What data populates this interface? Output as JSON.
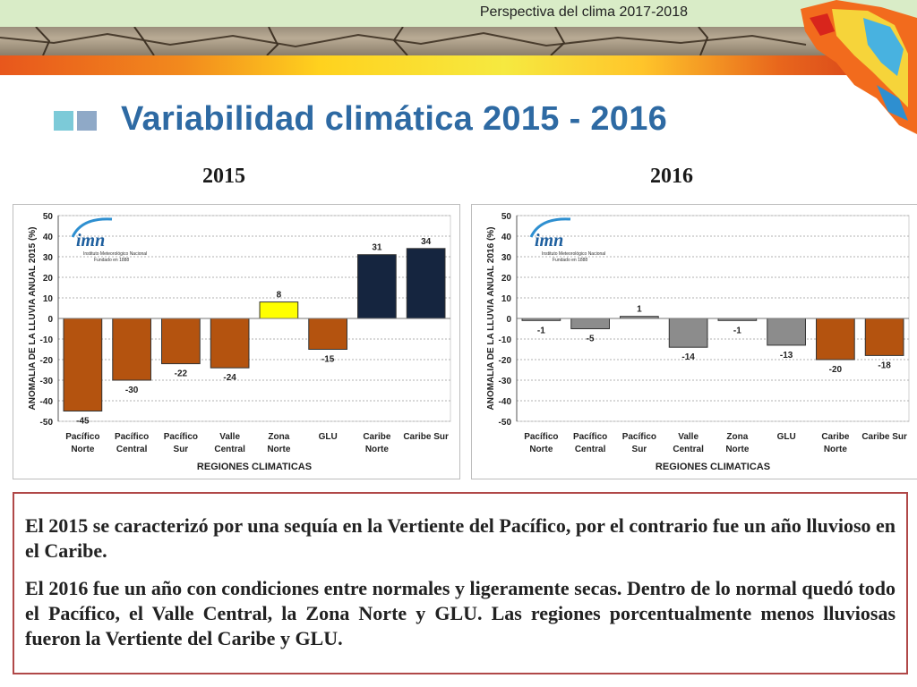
{
  "header": {
    "title": "Perspectiva del clima 2017-2018"
  },
  "slide": {
    "title": "Variabilidad climática 2015 - 2016"
  },
  "logo": {
    "text": "imn",
    "subtitle1": "Instituto Meteorológico Nacional",
    "subtitle2": "Fundado en 1888"
  },
  "colors": {
    "dry": "#b4530f",
    "normal": "#8c8c8c",
    "wet": "#15253f",
    "yellow": "#ffff00",
    "title": "#2e6aa3"
  },
  "chart_data": [
    {
      "type": "bar",
      "title": "2015",
      "xlabel": "REGIONES CLIMATICAS",
      "ylabel": "ANOMALIA DE LA LLUVIA ANUAL 2015 (%)",
      "ylim": [
        -50,
        50
      ],
      "yticks": [
        50,
        40,
        30,
        20,
        10,
        0,
        -10,
        -20,
        -30,
        -40,
        -50
      ],
      "grid": true,
      "categories": [
        [
          "Pacífico",
          "Norte"
        ],
        [
          "Pacífico",
          "Central"
        ],
        [
          "Pacífico",
          "Sur"
        ],
        [
          "Valle",
          "Central"
        ],
        [
          "Zona",
          "Norte"
        ],
        [
          "GLU"
        ],
        [
          "Caribe",
          "Norte"
        ],
        [
          "Caribe Sur"
        ]
      ],
      "values": [
        -45,
        -30,
        -22,
        -24,
        8,
        -15,
        31,
        34
      ],
      "bar_colors": [
        "#b4530f",
        "#b4530f",
        "#b4530f",
        "#b4530f",
        "#ffff00",
        "#b4530f",
        "#15253f",
        "#15253f"
      ]
    },
    {
      "type": "bar",
      "title": "2016",
      "xlabel": "REGIONES CLIMATICAS",
      "ylabel": "ANOMALIA DE LA LLUVIA ANUAL 2016 (%)",
      "ylim": [
        -50,
        50
      ],
      "yticks": [
        50,
        40,
        30,
        20,
        10,
        0,
        -10,
        -20,
        -30,
        -40,
        -50
      ],
      "grid": true,
      "categories": [
        [
          "Pacífico",
          "Norte"
        ],
        [
          "Pacífico",
          "Central"
        ],
        [
          "Pacífico",
          "Sur"
        ],
        [
          "Valle",
          "Central"
        ],
        [
          "Zona",
          "Norte"
        ],
        [
          "GLU"
        ],
        [
          "Caribe",
          "Norte"
        ],
        [
          "Caribe Sur"
        ]
      ],
      "values": [
        -1,
        -5,
        1,
        -14,
        -1,
        -13,
        -20,
        -18
      ],
      "bar_colors": [
        "#8c8c8c",
        "#8c8c8c",
        "#8c8c8c",
        "#8c8c8c",
        "#8c8c8c",
        "#8c8c8c",
        "#b4530f",
        "#b4530f"
      ]
    }
  ],
  "summary": {
    "paragraph1": "El 2015 se caracterizó por una sequía en la Vertiente del Pacífico, por el contrario fue un año lluvioso en el Caribe.",
    "paragraph2": "El 2016 fue un año con condiciones entre normales y ligeramente secas. Dentro de lo normal quedó todo el Pacífico, el Valle Central, la Zona Norte y GLU. Las regiones porcentualmente menos lluviosas fueron la Vertiente del Caribe y GLU."
  }
}
